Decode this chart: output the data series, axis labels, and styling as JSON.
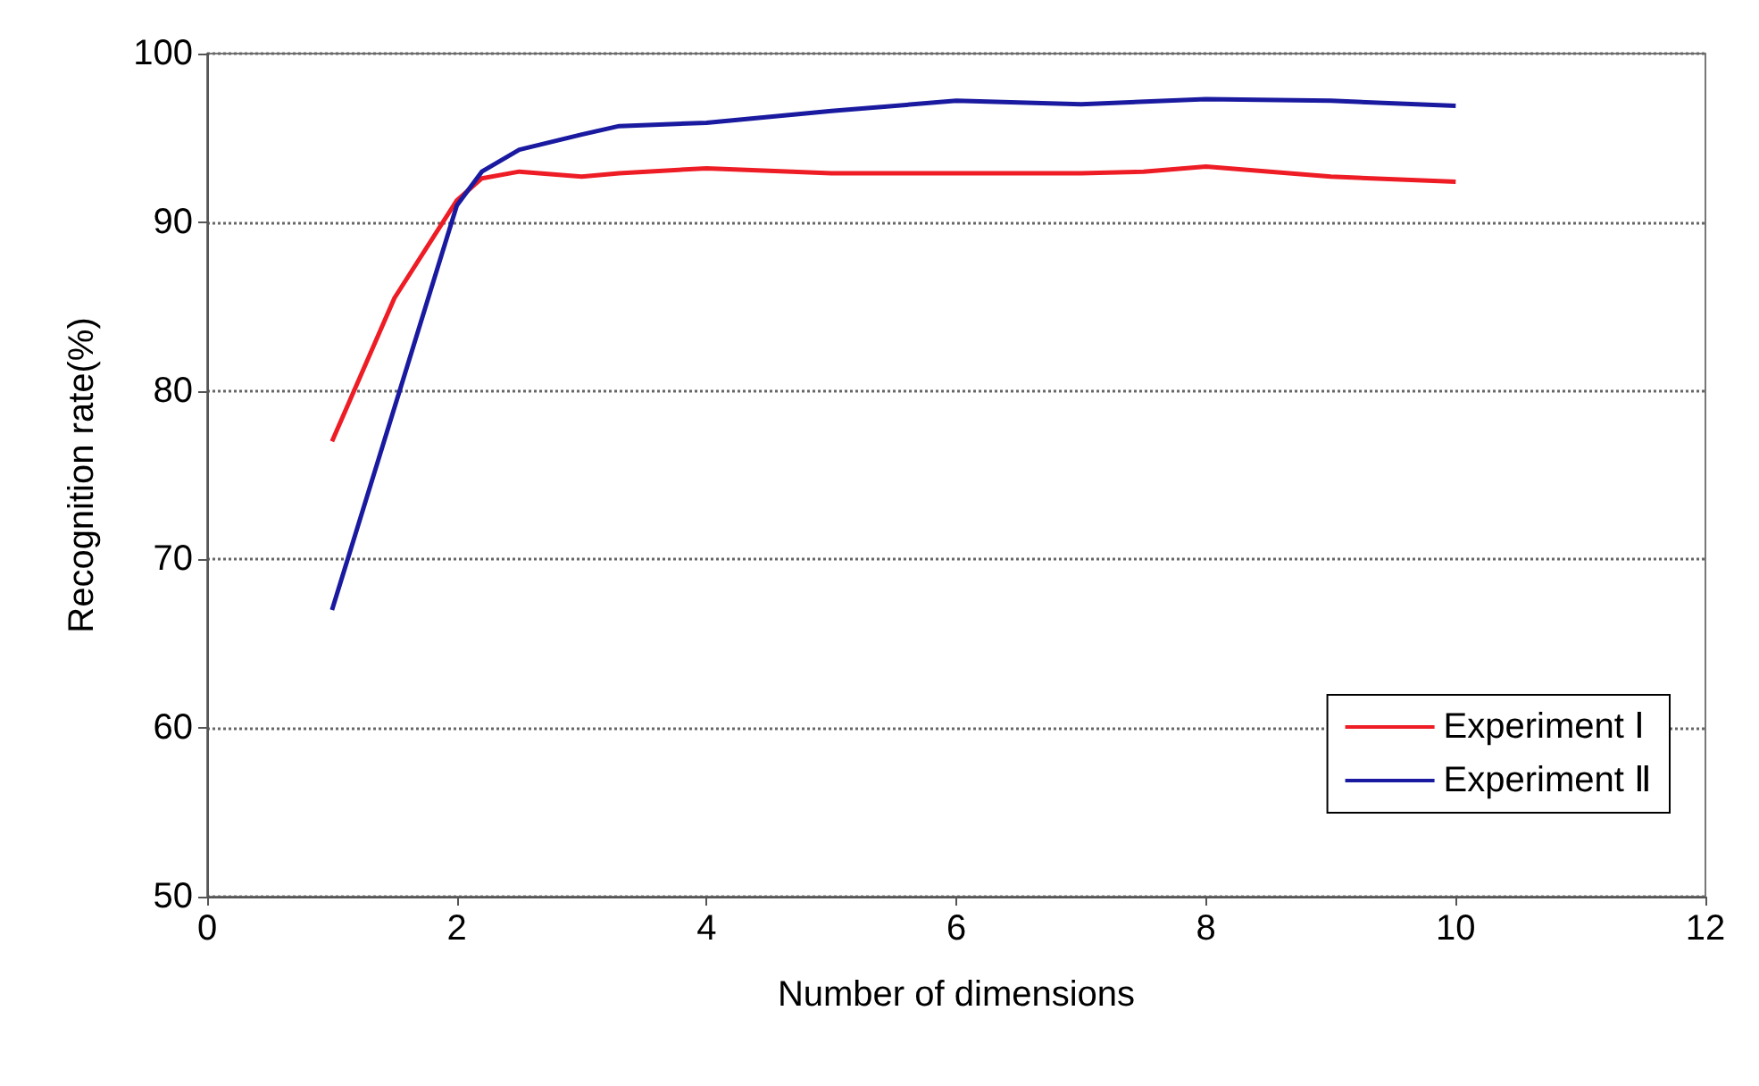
{
  "chart_data": {
    "type": "line",
    "xlabel": "Number of dimensions",
    "ylabel": "Recognition rate(%)",
    "xlim": [
      0,
      12
    ],
    "xticks": [
      0,
      2,
      4,
      6,
      8,
      10,
      12
    ],
    "ylim": [
      50,
      100
    ],
    "yticks": [
      50,
      60,
      70,
      80,
      90,
      100
    ],
    "grid": "y",
    "legend": "bottom right",
    "marker": "none",
    "line_style": "solid",
    "series": [
      {
        "name": "Experiment Ⅰ",
        "color": "#ee1c25",
        "x": [
          1,
          1.5,
          2,
          2.2,
          2.5,
          3,
          3.3,
          4,
          5,
          6,
          7,
          7.5,
          8,
          9,
          10
        ],
        "values": [
          77,
          85.5,
          91.3,
          92.6,
          93.0,
          92.7,
          92.9,
          93.2,
          92.9,
          92.9,
          92.9,
          93.0,
          93.3,
          92.7,
          92.4
        ]
      },
      {
        "name": "Experiment Ⅱ",
        "color": "#1a1aa0",
        "x": [
          1,
          1.5,
          2,
          2.2,
          2.5,
          3,
          3.3,
          4,
          5,
          6,
          7,
          8,
          9,
          10
        ],
        "values": [
          67,
          79,
          91.0,
          93.0,
          94.3,
          95.2,
          95.7,
          95.9,
          96.6,
          97.2,
          97.0,
          97.3,
          97.2,
          96.9
        ]
      }
    ]
  }
}
